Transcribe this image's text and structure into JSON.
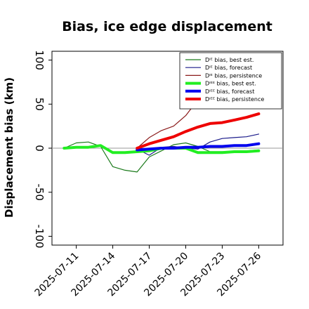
{
  "title": "Bias, ice edge displacement",
  "chart_data": {
    "type": "line",
    "title": "Bias, ice edge displacement",
    "ylabel": "Displacement bias (km)",
    "xlabel": "",
    "ylim": [
      -110,
      110
    ],
    "yticks": [
      -100,
      -50,
      0,
      50,
      100
    ],
    "x_range": [
      "2025-07-09",
      "2025-07-28"
    ],
    "xticks": [
      "2025-07-11",
      "2025-07-14",
      "2025-07-17",
      "2025-07-20",
      "2025-07-23",
      "2025-07-26"
    ],
    "highlighted_xtick": "2025-07-17",
    "highlight_color": "#2e8b2e",
    "grid": false,
    "legend_position": "top-right",
    "series": [
      {
        "name": "Dᴵᴱ bias, best est.",
        "color": "#1a7a1a",
        "width": 1.2,
        "x": [
          "2025-07-10",
          "2025-07-11",
          "2025-07-12",
          "2025-07-13",
          "2025-07-14",
          "2025-07-15",
          "2025-07-16",
          "2025-07-17",
          "2025-07-18",
          "2025-07-19",
          "2025-07-20",
          "2025-07-21",
          "2025-07-22",
          "2025-07-23",
          "2025-07-24",
          "2025-07-25",
          "2025-07-26"
        ],
        "values": [
          0,
          6,
          7,
          2,
          -21,
          -25,
          -27,
          -10,
          -3,
          4,
          6,
          2,
          -4,
          -4,
          -4,
          -3,
          -2
        ]
      },
      {
        "name": "Dᴵᴱ bias, forecast",
        "color": "#1a1a8a",
        "width": 1.2,
        "x": [
          "2025-07-16",
          "2025-07-17",
          "2025-07-18",
          "2025-07-19",
          "2025-07-20",
          "2025-07-21",
          "2025-07-22",
          "2025-07-23",
          "2025-07-24",
          "2025-07-25",
          "2025-07-26"
        ],
        "values": [
          -1,
          -8,
          1,
          2,
          0,
          -1,
          7,
          11,
          12,
          13,
          16
        ]
      },
      {
        "name": "Dᴵᴱ bias, persistence",
        "color": "#8b1a1a",
        "width": 1.2,
        "x": [
          "2025-07-16",
          "2025-07-17",
          "2025-07-18",
          "2025-07-19",
          "2025-07-20",
          "2025-07-21",
          "2025-07-22",
          "2025-07-23",
          "2025-07-24",
          "2025-07-25",
          "2025-07-26"
        ],
        "values": [
          0,
          12,
          20,
          25,
          37,
          55,
          72,
          76,
          79,
          83,
          86
        ]
      },
      {
        "name": "Dᴵᴱᴱ bias, best est.",
        "color": "#22ee22",
        "width": 4,
        "x": [
          "2025-07-10",
          "2025-07-11",
          "2025-07-12",
          "2025-07-13",
          "2025-07-14",
          "2025-07-15",
          "2025-07-16",
          "2025-07-17",
          "2025-07-18",
          "2025-07-19",
          "2025-07-20",
          "2025-07-21",
          "2025-07-22",
          "2025-07-23",
          "2025-07-24",
          "2025-07-25",
          "2025-07-26"
        ],
        "values": [
          0,
          1,
          1,
          3,
          -5,
          -5,
          -4,
          -3,
          0,
          0,
          0,
          -5,
          -5,
          -5,
          -4,
          -4,
          -3
        ]
      },
      {
        "name": "Dᴵᴱᴱ bias, forecast",
        "color": "#0000ee",
        "width": 4,
        "x": [
          "2025-07-16",
          "2025-07-17",
          "2025-07-18",
          "2025-07-19",
          "2025-07-20",
          "2025-07-21",
          "2025-07-22",
          "2025-07-23",
          "2025-07-24",
          "2025-07-25",
          "2025-07-26"
        ],
        "values": [
          -2,
          -1,
          0,
          0,
          1,
          1,
          2,
          2,
          3,
          3,
          5
        ]
      },
      {
        "name": "Dᴵᴱᴱ bias, persistence",
        "color": "#ee0000",
        "width": 4,
        "x": [
          "2025-07-16",
          "2025-07-17",
          "2025-07-18",
          "2025-07-19",
          "2025-07-20",
          "2025-07-21",
          "2025-07-22",
          "2025-07-23",
          "2025-07-24",
          "2025-07-25",
          "2025-07-26"
        ],
        "values": [
          0,
          5,
          9,
          13,
          19,
          24,
          28,
          29,
          32,
          35,
          39
        ]
      }
    ]
  }
}
